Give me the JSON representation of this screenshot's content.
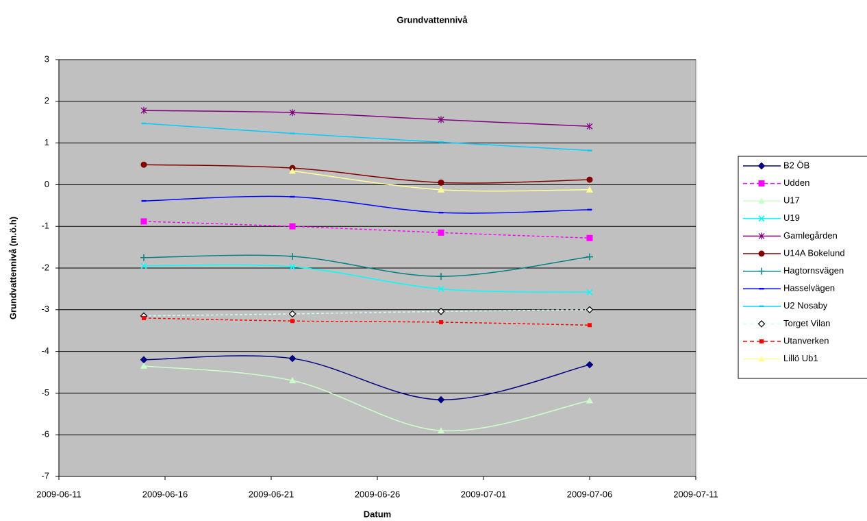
{
  "chart_data": {
    "type": "line",
    "title": "Grundvattennivå",
    "xlabel": "Datum",
    "ylabel": "Grundvattennivå (m.ö.h)",
    "x": [
      "2009-06-15",
      "2009-06-22",
      "2009-06-29",
      "2009-07-06"
    ],
    "xlim": [
      "2009-06-11",
      "2009-07-11"
    ],
    "xticks": [
      "2009-06-11",
      "2009-06-16",
      "2009-06-21",
      "2009-06-26",
      "2009-07-01",
      "2009-07-06",
      "2009-07-11"
    ],
    "ylim": [
      -7,
      3
    ],
    "yticks": [
      -7,
      -6,
      -5,
      -4,
      -3,
      -2,
      -1,
      0,
      1,
      2,
      3
    ],
    "grid": true,
    "legend": "right",
    "series": [
      {
        "name": "B2 ÖB",
        "color": "#000080",
        "marker": "diamond",
        "dash": false,
        "values": [
          -4.2,
          -4.17,
          -5.16,
          -4.32
        ]
      },
      {
        "name": "Udden",
        "color": "#FF00FF",
        "marker": "square",
        "dash": true,
        "values": [
          -0.88,
          -1.0,
          -1.15,
          -1.28
        ]
      },
      {
        "name": "U17",
        "color": "#CCFFCC",
        "marker": "triangle",
        "dash": false,
        "values": [
          -4.35,
          -4.7,
          -5.9,
          -5.18
        ]
      },
      {
        "name": "U19",
        "color": "#00FFFF",
        "marker": "x",
        "dash": false,
        "values": [
          -1.95,
          -1.97,
          -2.5,
          -2.58
        ]
      },
      {
        "name": "Gamlegården",
        "color": "#800080",
        "marker": "star",
        "dash": false,
        "values": [
          1.78,
          1.73,
          1.56,
          1.4
        ]
      },
      {
        "name": "U14A Bokelund",
        "color": "#800000",
        "marker": "circle",
        "dash": false,
        "values": [
          0.48,
          0.4,
          0.05,
          0.12
        ]
      },
      {
        "name": "Hagtornsvägen",
        "color": "#008080",
        "marker": "plus",
        "dash": false,
        "values": [
          -1.75,
          -1.72,
          -2.2,
          -1.73
        ]
      },
      {
        "name": "Hasselvägen",
        "color": "#0000FF",
        "marker": "dash",
        "dash": false,
        "values": [
          -0.39,
          -0.29,
          -0.67,
          -0.6
        ]
      },
      {
        "name": "U2 Nosaby",
        "color": "#00CCFF",
        "marker": "dash",
        "dash": false,
        "values": [
          1.47,
          1.23,
          1.02,
          0.82
        ]
      },
      {
        "name": "Torget Vilan",
        "color": "#CCFFFF",
        "marker": "opendiamond",
        "dash": true,
        "values": [
          -3.15,
          -3.1,
          -3.04,
          -3.0
        ]
      },
      {
        "name": "Utanverken",
        "color": "#FF0000",
        "marker": "smallsquare",
        "dash": true,
        "values": [
          -3.2,
          -3.27,
          -3.3,
          -3.37
        ]
      },
      {
        "name": "Lillö Ub1",
        "color": "#FFFF99",
        "marker": "triangle",
        "dash": false,
        "values": [
          null,
          0.33,
          -0.12,
          -0.12
        ]
      }
    ]
  }
}
